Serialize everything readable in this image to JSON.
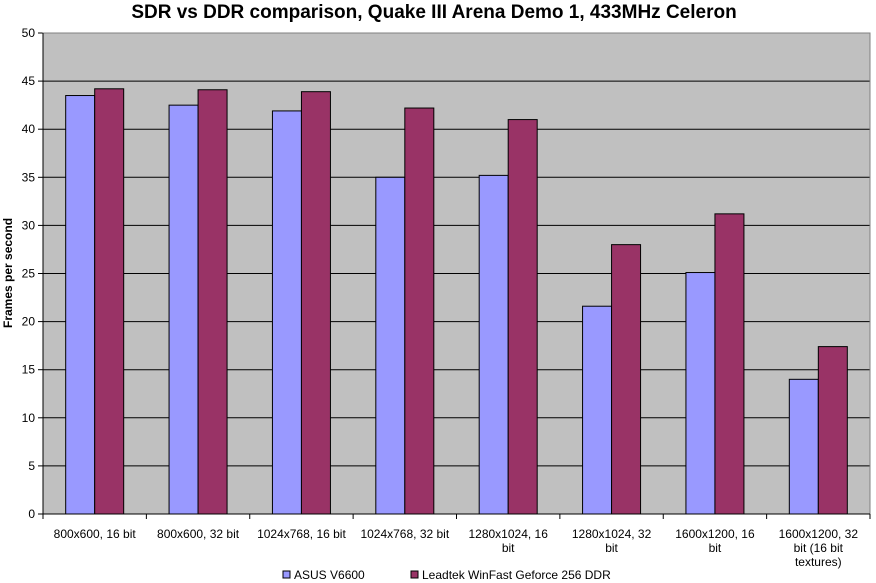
{
  "chart_data": {
    "type": "bar",
    "title": "SDR vs DDR comparison, Quake III Arena Demo 1, 433MHz Celeron",
    "xlabel": "",
    "ylabel": "Frames per second",
    "ylim": [
      0,
      50
    ],
    "yticks": [
      0,
      5,
      10,
      15,
      20,
      25,
      30,
      35,
      40,
      45,
      50
    ],
    "grid": true,
    "legend_position": "bottom",
    "categories": [
      [
        "800x600, 16 bit"
      ],
      [
        "800x600, 32 bit"
      ],
      [
        "1024x768, 16 bit"
      ],
      [
        "1024x768, 32 bit"
      ],
      [
        "1280x1024, 16",
        "bit"
      ],
      [
        "1280x1024, 32",
        "bit"
      ],
      [
        "1600x1200, 16",
        "bit"
      ],
      [
        "1600x1200, 32",
        "bit (16 bit",
        "textures)"
      ]
    ],
    "series": [
      {
        "name": "ASUS V6600",
        "color": "#9999ff",
        "values": [
          43.5,
          42.5,
          41.9,
          35.0,
          35.2,
          21.6,
          25.1,
          14.0
        ]
      },
      {
        "name": "Leadtek WinFast Geforce 256 DDR",
        "color": "#993366",
        "values": [
          44.2,
          44.1,
          43.9,
          42.2,
          41.0,
          28.0,
          31.2,
          17.4
        ]
      }
    ],
    "plot_background": "#c0c0c0"
  }
}
